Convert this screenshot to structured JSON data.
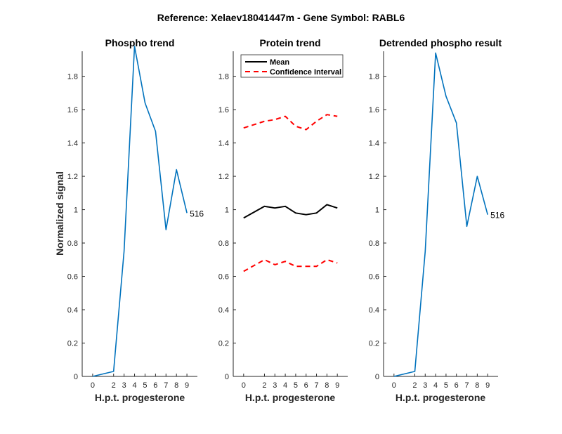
{
  "figure_title": "Reference:  Xelaev18041447m - Gene Symbol:  RABL6",
  "colors": {
    "phospho": "#0072BD",
    "mean": "#000000",
    "ci": "#FF0000",
    "axis": "#262626"
  },
  "chart_data": [
    {
      "type": "line",
      "title": "Phospho trend",
      "xlabel": "H.p.t. progesterone",
      "ylabel": "Normalized signal",
      "xlim": [
        -1,
        10
      ],
      "ylim": [
        0,
        1.95
      ],
      "xticks": [
        0,
        2,
        3,
        4,
        5,
        6,
        7,
        8,
        9
      ],
      "yticks": [
        0,
        0.2,
        0.4,
        0.6,
        0.8,
        1,
        1.2,
        1.4,
        1.6,
        1.8
      ],
      "ytick_labels": [
        "0",
        "0.2",
        "0.4",
        "0.6",
        "0.8",
        "1",
        "1.2",
        "1.4",
        "1.6",
        "1.8"
      ],
      "series": [
        {
          "name": "phospho",
          "x": [
            0,
            2,
            3,
            4,
            5,
            6,
            7,
            8,
            9
          ],
          "y": [
            0.0,
            0.03,
            0.75,
            1.98,
            1.64,
            1.47,
            0.88,
            1.24,
            0.98
          ]
        }
      ],
      "annotation": {
        "text": "516",
        "x": 9,
        "y": 0.98
      }
    },
    {
      "type": "line",
      "title": "Protein trend",
      "xlabel": "H.p.t. progesterone",
      "ylabel": "",
      "xlim": [
        -1,
        10
      ],
      "ylim": [
        0,
        1.95
      ],
      "xticks": [
        0,
        2,
        3,
        4,
        5,
        6,
        7,
        8,
        9
      ],
      "yticks": [
        0,
        0.2,
        0.4,
        0.6,
        0.8,
        1,
        1.2,
        1.4,
        1.6,
        1.8
      ],
      "ytick_labels": [
        "0",
        "0.2",
        "0.4",
        "0.6",
        "0.8",
        "1",
        "1.2",
        "1.4",
        "1.6",
        "1.8"
      ],
      "legend": {
        "placement": "top-left",
        "entries": [
          "Mean",
          "Confidence Interval"
        ]
      },
      "series": [
        {
          "name": "Mean",
          "x": [
            0,
            2,
            3,
            4,
            5,
            6,
            7,
            8,
            9
          ],
          "y": [
            0.95,
            1.02,
            1.01,
            1.02,
            0.98,
            0.97,
            0.98,
            1.03,
            1.01
          ]
        },
        {
          "name": "Confidence Interval upper",
          "x": [
            0,
            2,
            3,
            4,
            5,
            6,
            7,
            8,
            9
          ],
          "y": [
            1.49,
            1.53,
            1.54,
            1.56,
            1.5,
            1.48,
            1.53,
            1.57,
            1.56
          ]
        },
        {
          "name": "Confidence Interval lower",
          "x": [
            0,
            2,
            3,
            4,
            5,
            6,
            7,
            8,
            9
          ],
          "y": [
            0.63,
            0.7,
            0.67,
            0.69,
            0.66,
            0.66,
            0.66,
            0.7,
            0.68
          ]
        }
      ]
    },
    {
      "type": "line",
      "title": "Detrended phospho result",
      "xlabel": "H.p.t. progesterone",
      "ylabel": "",
      "xlim": [
        -1,
        10
      ],
      "ylim": [
        0,
        1.95
      ],
      "xticks": [
        0,
        2,
        3,
        4,
        5,
        6,
        7,
        8,
        9
      ],
      "yticks": [
        0,
        0.2,
        0.4,
        0.6,
        0.8,
        1,
        1.2,
        1.4,
        1.6,
        1.8
      ],
      "ytick_labels": [
        "0",
        "0.2",
        "0.4",
        "0.6",
        "0.8",
        "1",
        "1.2",
        "1.4",
        "1.6",
        "1.8"
      ],
      "series": [
        {
          "name": "detrended",
          "x": [
            0,
            2,
            3,
            4,
            5,
            6,
            7,
            8,
            9
          ],
          "y": [
            0.0,
            0.03,
            0.75,
            1.94,
            1.68,
            1.52,
            0.9,
            1.2,
            0.97
          ]
        }
      ],
      "annotation": {
        "text": "516",
        "x": 9,
        "y": 0.97
      }
    }
  ]
}
